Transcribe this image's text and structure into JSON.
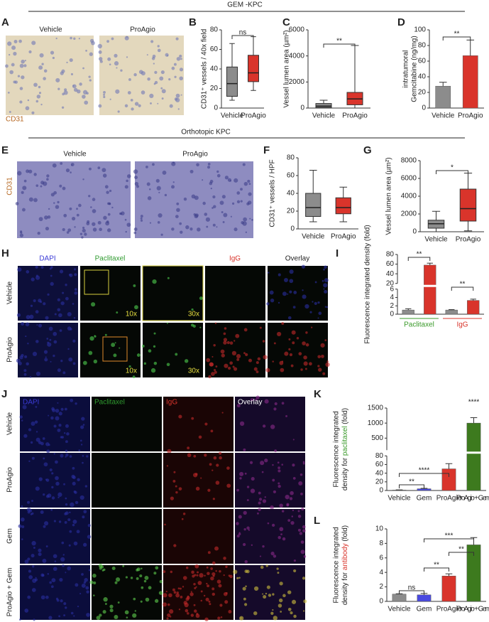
{
  "headers": {
    "gem": "GEM -KPC",
    "orthotopic": "Orthotopic KPC"
  },
  "panels": {
    "A": {
      "letter": "A",
      "labels": [
        "Vehicle",
        "ProAgio"
      ],
      "stain": "CD31"
    },
    "E": {
      "letter": "E",
      "labels": [
        "Vehicle",
        "ProAgio"
      ],
      "stain": "CD31"
    },
    "H": {
      "letter": "H",
      "columns": [
        "DAPI",
        "Paclitaxel",
        "IgG",
        "Overlay"
      ],
      "rows": [
        "Vehicle",
        "ProAgio"
      ],
      "magnifications": [
        "10x",
        "30x"
      ]
    },
    "J": {
      "letter": "J",
      "columns": [
        "DAPI",
        "Paclitaxel",
        "IgG",
        "Overlay"
      ],
      "rows": [
        "Vehicle",
        "ProAgio",
        "Gem",
        "ProAgio + Gem"
      ]
    }
  },
  "chart_data": [
    {
      "type": "box",
      "panel": "B",
      "ylabel": "CD31⁺ vessels / 40x field",
      "categories": [
        "Vehicle",
        "ProAgio"
      ],
      "colors": [
        "#8c8c8c",
        "#d9342b"
      ],
      "boxes": [
        {
          "min": 8,
          "q1": 12,
          "median": 25,
          "q3": 42,
          "max": 66
        },
        {
          "min": 18,
          "q1": 27,
          "median": 36,
          "q3": 54,
          "max": 73
        }
      ],
      "ylim": [
        0,
        80
      ],
      "yticks": [
        0,
        20,
        40,
        60,
        80
      ],
      "annotations": [
        "ns"
      ]
    },
    {
      "type": "box",
      "panel": "C",
      "ylabel": "Vessel lumen area (µm²)",
      "categories": [
        "Vehicle",
        "ProAgio"
      ],
      "colors": [
        "#8c8c8c",
        "#d9342b"
      ],
      "boxes": [
        {
          "min": 0,
          "q1": 50,
          "median": 150,
          "q3": 350,
          "max": 600
        },
        {
          "min": 0,
          "q1": 250,
          "median": 700,
          "q3": 1200,
          "max": 4800
        }
      ],
      "ylim": [
        0,
        6000
      ],
      "yticks": [
        0,
        2000,
        4000,
        6000
      ],
      "annotations": [
        "**"
      ]
    },
    {
      "type": "bar",
      "panel": "D",
      "ylabel": [
        "intratumoral",
        "Gemcitabine (ng/mg)"
      ],
      "categories": [
        "Vehicle",
        "ProAgio"
      ],
      "colors": [
        "#8c8c8c",
        "#d9342b"
      ],
      "values": [
        28,
        67
      ],
      "errors": [
        5,
        20
      ],
      "ylim": [
        0,
        100
      ],
      "yticks": [
        0,
        20,
        40,
        60,
        80,
        100
      ],
      "annotations": [
        "**"
      ]
    },
    {
      "type": "box",
      "panel": "F",
      "ylabel": "CD31⁺ vessels / HPF",
      "categories": [
        "Vehicle",
        "ProAgio"
      ],
      "colors": [
        "#8c8c8c",
        "#d9342b"
      ],
      "boxes": [
        {
          "min": 8,
          "q1": 14,
          "median": 24,
          "q3": 40,
          "max": 66
        },
        {
          "min": 8,
          "q1": 17,
          "median": 24,
          "q3": 35,
          "max": 47
        }
      ],
      "ylim": [
        0,
        80
      ],
      "yticks": [
        0,
        20,
        40,
        60,
        80
      ],
      "annotations": []
    },
    {
      "type": "box",
      "panel": "G",
      "ylabel": "Vessel lumen area (µm²)",
      "categories": [
        "Vehicle",
        "ProAgio"
      ],
      "colors": [
        "#8c8c8c",
        "#d9342b"
      ],
      "boxes": [
        {
          "min": 0,
          "q1": 400,
          "median": 900,
          "q3": 1300,
          "max": 2300
        },
        {
          "min": 100,
          "q1": 1200,
          "median": 2600,
          "q3": 4800,
          "max": 6600
        }
      ],
      "ylim": [
        0,
        8000
      ],
      "yticks": [
        0,
        2000,
        4000,
        6000,
        8000
      ],
      "annotations": [
        "*"
      ]
    },
    {
      "type": "bar",
      "panel": "I",
      "ylabel": "Fluorescence integrated density (fold)",
      "groups": [
        "Paclitaxel",
        "IgG"
      ],
      "group_colors": [
        "#3a9a2a",
        "#d9342b"
      ],
      "colors": [
        "#8c8c8c",
        "#d9342b",
        "#8c8c8c",
        "#d9342b"
      ],
      "values": [
        1,
        58,
        1,
        3.3
      ],
      "errors": [
        0.3,
        4,
        0.1,
        0.3
      ],
      "ylim": [
        0,
        80
      ],
      "ybreak": [
        6,
        20
      ],
      "yticks": [
        0,
        2,
        4,
        6,
        20,
        40,
        60,
        80
      ],
      "annotations": [
        "**",
        "**"
      ]
    },
    {
      "type": "bar",
      "panel": "K",
      "ylabel": [
        "Fluorescence integrated",
        [
          "density for ",
          "paclitaxel",
          " (fold)"
        ]
      ],
      "ylabel_color": "#3a9a2a",
      "categories": [
        "Vehicle",
        "Gem",
        "ProAgio",
        "ProAgio + Gem"
      ],
      "colors": [
        "#8c8c8c",
        "#4a4ae0",
        "#d9342b",
        "#3d7a1e"
      ],
      "values": [
        1,
        4,
        50,
        1000
      ],
      "errors": [
        0.5,
        1,
        12,
        180
      ],
      "ylim": [
        0,
        1500
      ],
      "ybreak": [
        80,
        100
      ],
      "yticks": [
        0,
        20,
        40,
        60,
        80,
        500,
        1000,
        1500
      ],
      "annotations": [
        "**",
        "****",
        "****"
      ]
    },
    {
      "type": "bar",
      "panel": "L",
      "ylabel": [
        "Fluorescence integrated",
        [
          "density for ",
          "antibody",
          " (fold)"
        ]
      ],
      "ylabel_color": "#d9342b",
      "categories": [
        "Vehicle",
        "Gem",
        "ProAgio",
        "ProAgio + Gem"
      ],
      "colors": [
        "#8c8c8c",
        "#4a4ae0",
        "#d9342b",
        "#3d7a1e"
      ],
      "values": [
        1,
        0.9,
        3.5,
        7.8
      ],
      "errors": [
        0.05,
        0.2,
        0.3,
        1
      ],
      "ylim": [
        0,
        10
      ],
      "yticks": [
        0,
        2,
        4,
        6,
        8,
        10
      ],
      "annotations": [
        "ns",
        "**",
        "***",
        "**"
      ]
    }
  ]
}
